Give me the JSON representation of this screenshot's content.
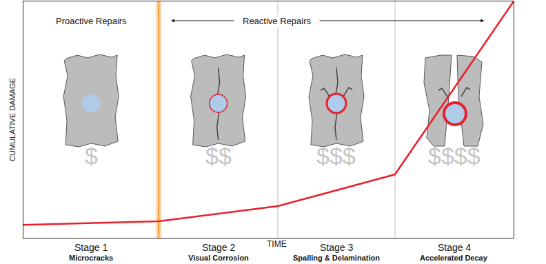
{
  "chart_data": {
    "type": "line",
    "x_label": "TIME",
    "y_label": "CUMULATIVE DAMAGE",
    "x": [
      0,
      27.6,
      51.9,
      75.8,
      100
    ],
    "values": [
      5.5,
      7.0,
      13.4,
      26.8,
      100
    ],
    "color": "#e8202a",
    "xlim": [
      0,
      100
    ],
    "ylim": [
      0,
      100
    ],
    "xticks": [],
    "yticks": [],
    "tick_labels": false,
    "grid": false,
    "boundaries": [
      27.6,
      51.9,
      75.8
    ],
    "phases": [
      {
        "label": "Proactive Repairs"
      },
      {
        "label": "Reactive Repairs"
      }
    ],
    "stages": [
      {
        "label": "Stage 1",
        "caption": "Microcracks",
        "cost": "$"
      },
      {
        "label": "Stage 2",
        "caption": "Visual Corrosion",
        "cost": "$$"
      },
      {
        "label": "Stage 3",
        "caption": "Spalling & Delamination",
        "cost": "$$$"
      },
      {
        "label": "Stage 4",
        "caption": "Accelerated Decay",
        "cost": "$$$$"
      }
    ]
  }
}
